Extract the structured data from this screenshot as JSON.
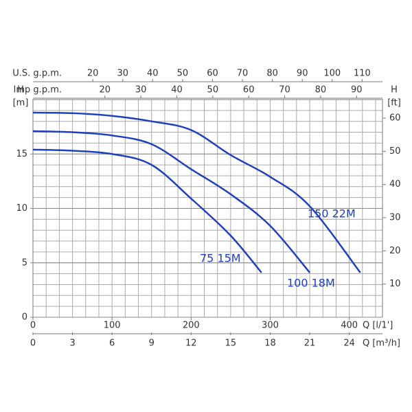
{
  "chart_data": {
    "type": "line",
    "x_label": "Q [l/1']",
    "x2_label": "Q [m³/h]",
    "x3_label": "U.S. g.p.m.",
    "x4_label": "Imp g.p.m.",
    "y_name": "H",
    "y_unit": "[m]",
    "y2_name": "H",
    "y2_unit": "[ft]",
    "xlim": [
      0,
      442
    ],
    "xticks": [
      0,
      100,
      200,
      300,
      400
    ],
    "x2lim": [
      0,
      26.52
    ],
    "x2ticks": [
      0,
      3,
      6,
      9,
      12,
      15,
      18,
      21,
      24
    ],
    "x3lim": [
      0,
      116.8
    ],
    "x3ticks": [
      20,
      30,
      40,
      50,
      60,
      70,
      80,
      90,
      100,
      110
    ],
    "x4lim": [
      0,
      97.2
    ],
    "x4ticks": [
      20,
      30,
      40,
      50,
      60,
      70,
      80,
      90
    ],
    "ylim": [
      0,
      20
    ],
    "yticks": [
      0,
      5,
      10,
      15
    ],
    "y2lim": [
      0,
      65.6
    ],
    "y2ticks": [
      10,
      20,
      30,
      40,
      50,
      60
    ],
    "grid": true,
    "series": [
      {
        "name": "150 22M",
        "color": "#1f3fbf",
        "x": [
          0,
          50,
          100,
          150,
          200,
          250,
          300,
          350,
          414
        ],
        "values": [
          18.8,
          18.75,
          18.5,
          18.0,
          17.2,
          14.9,
          12.9,
          10.2,
          4.1
        ]
      },
      {
        "name": "100 18M",
        "color": "#1f3fbf",
        "x": [
          0,
          50,
          100,
          150,
          200,
          250,
          300,
          350
        ],
        "values": [
          17.1,
          17.0,
          16.7,
          15.9,
          13.6,
          11.3,
          8.4,
          4.1
        ]
      },
      {
        "name": "75 15M",
        "color": "#1f3fbf",
        "x": [
          0,
          50,
          100,
          150,
          200,
          250,
          289
        ],
        "values": [
          15.4,
          15.3,
          15.0,
          14.0,
          10.9,
          7.5,
          4.1
        ]
      }
    ]
  }
}
